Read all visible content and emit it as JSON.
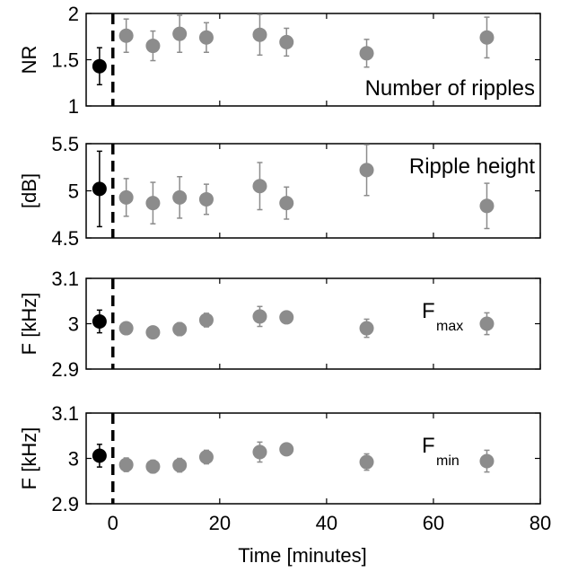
{
  "chart_data": {
    "type": "scatter",
    "x_axis": {
      "label": "Time [minutes]",
      "range": [
        -5,
        80
      ],
      "ticks": [
        0,
        20,
        40,
        60,
        80
      ],
      "tick_labels": [
        "0",
        "20",
        "40",
        "60",
        "80"
      ]
    },
    "baseline_marker_x": 0,
    "colors": {
      "baseline": "#000000",
      "post": "#8c8c8c",
      "marker_line": "#000000"
    },
    "panels": [
      {
        "id": "number-of-ripples",
        "ylabel": "NR",
        "annotation": {
          "main": "Number of ripples",
          "sub": ""
        },
        "ylim": [
          1,
          2
        ],
        "ticks": [
          1,
          1.5,
          2
        ],
        "tick_labels": [
          "1",
          "1.5",
          "2"
        ],
        "baseline": {
          "x": -2.5,
          "y": 1.43,
          "err": 0.2
        },
        "points": [
          {
            "x": 2.5,
            "y": 1.76,
            "err": 0.18
          },
          {
            "x": 7.5,
            "y": 1.65,
            "err": 0.16
          },
          {
            "x": 12.5,
            "y": 1.78,
            "err": 0.2
          },
          {
            "x": 17.5,
            "y": 1.74,
            "err": 0.16
          },
          {
            "x": 27.5,
            "y": 1.77,
            "err": 0.22
          },
          {
            "x": 32.5,
            "y": 1.69,
            "err": 0.15
          },
          {
            "x": 47.5,
            "y": 1.57,
            "err": 0.15
          },
          {
            "x": 70,
            "y": 1.74,
            "err": 0.22
          }
        ]
      },
      {
        "id": "ripple-height",
        "ylabel": "[dB]",
        "annotation": {
          "main": "Ripple height",
          "sub": ""
        },
        "ylim": [
          4.5,
          5.5
        ],
        "ticks": [
          4.5,
          5,
          5.5
        ],
        "tick_labels": [
          "4.5",
          "5",
          "5.5"
        ],
        "baseline": {
          "x": -2.5,
          "y": 5.02,
          "err": 0.4
        },
        "points": [
          {
            "x": 2.5,
            "y": 4.93,
            "err": 0.2
          },
          {
            "x": 7.5,
            "y": 4.87,
            "err": 0.22
          },
          {
            "x": 12.5,
            "y": 4.93,
            "err": 0.22
          },
          {
            "x": 17.5,
            "y": 4.91,
            "err": 0.16
          },
          {
            "x": 27.5,
            "y": 5.05,
            "err": 0.25
          },
          {
            "x": 32.5,
            "y": 4.87,
            "err": 0.17
          },
          {
            "x": 47.5,
            "y": 5.22,
            "err": 0.27
          },
          {
            "x": 70,
            "y": 4.84,
            "err": 0.24
          }
        ]
      },
      {
        "id": "f-max",
        "ylabel": "F [kHz]",
        "annotation": {
          "main": "F",
          "sub": "max"
        },
        "ylim": [
          2.9,
          3.1
        ],
        "ticks": [
          2.9,
          3,
          3.1
        ],
        "tick_labels": [
          "2.9",
          "3",
          "3.1"
        ],
        "baseline": {
          "x": -2.5,
          "y": 3.005,
          "err": 0.025
        },
        "points": [
          {
            "x": 2.5,
            "y": 2.99,
            "err": 0.012
          },
          {
            "x": 7.5,
            "y": 2.981,
            "err": 0.012
          },
          {
            "x": 12.5,
            "y": 2.988,
            "err": 0.014
          },
          {
            "x": 17.5,
            "y": 3.008,
            "err": 0.015
          },
          {
            "x": 27.5,
            "y": 3.016,
            "err": 0.022
          },
          {
            "x": 32.5,
            "y": 3.014,
            "err": 0.012
          },
          {
            "x": 47.5,
            "y": 2.99,
            "err": 0.02
          },
          {
            "x": 70,
            "y": 3.0,
            "err": 0.024
          }
        ]
      },
      {
        "id": "f-min",
        "ylabel": "F [kHz]",
        "annotation": {
          "main": "F",
          "sub": "min"
        },
        "ylim": [
          2.9,
          3.1
        ],
        "ticks": [
          2.9,
          3,
          3.1
        ],
        "tick_labels": [
          "2.9",
          "3",
          "3.1"
        ],
        "baseline": {
          "x": -2.5,
          "y": 3.006,
          "err": 0.025
        },
        "points": [
          {
            "x": 2.5,
            "y": 2.986,
            "err": 0.015
          },
          {
            "x": 7.5,
            "y": 2.982,
            "err": 0.014
          },
          {
            "x": 12.5,
            "y": 2.985,
            "err": 0.015
          },
          {
            "x": 17.5,
            "y": 3.003,
            "err": 0.015
          },
          {
            "x": 27.5,
            "y": 3.014,
            "err": 0.022
          },
          {
            "x": 32.5,
            "y": 3.02,
            "err": 0.012
          },
          {
            "x": 47.5,
            "y": 2.992,
            "err": 0.018
          },
          {
            "x": 70,
            "y": 2.994,
            "err": 0.024
          }
        ]
      }
    ]
  }
}
